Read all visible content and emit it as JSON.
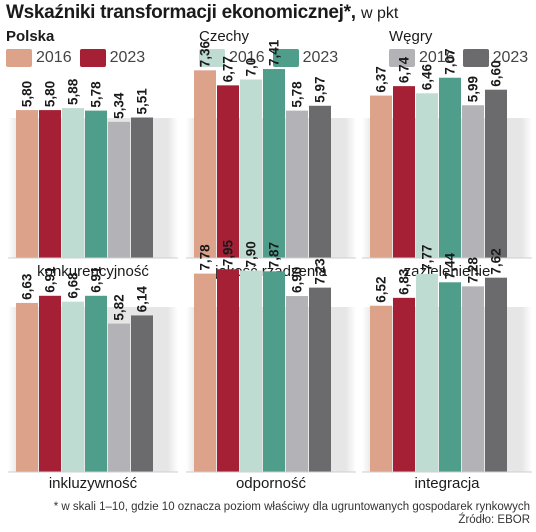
{
  "title": {
    "main": "Wskaźniki transformacji ekonomicznej*,",
    "unit": "w pkt"
  },
  "legend": [
    {
      "country": "Polska",
      "bold": true,
      "items": [
        {
          "label": "2016",
          "color": "#dca28a"
        },
        {
          "label": "2023",
          "color": "#a51f35"
        }
      ]
    },
    {
      "country": "Czechy",
      "bold": false,
      "items": [
        {
          "label": "2016",
          "color": "#bfdcd3"
        },
        {
          "label": "2023",
          "color": "#4f9e8c"
        }
      ]
    },
    {
      "country": "Węgry",
      "bold": false,
      "items": [
        {
          "label": "2016",
          "color": "#b3b3b7"
        },
        {
          "label": "2023",
          "color": "#6b6b6e"
        }
      ]
    }
  ],
  "chart_data": {
    "type": "bar",
    "series": [
      {
        "name": "Polska 2016",
        "color": "#dca28a"
      },
      {
        "name": "Polska 2023",
        "color": "#a51f35"
      },
      {
        "name": "Czechy 2016",
        "color": "#bfdcd3"
      },
      {
        "name": "Czechy 2023",
        "color": "#4f9e8c"
      },
      {
        "name": "Węgry 2016",
        "color": "#b3b3b7"
      },
      {
        "name": "Węgry 2023",
        "color": "#6b6b6e"
      }
    ],
    "ylim": [
      0,
      10
    ],
    "panels": [
      {
        "title": "konkurencyjność",
        "values": [
          5.8,
          5.8,
          5.88,
          5.78,
          5.34,
          5.51
        ],
        "labels": [
          "5,80",
          "5,80",
          "5,88",
          "5,78",
          "5,34",
          "5,51"
        ]
      },
      {
        "title": "jakość rządzenia",
        "values": [
          7.36,
          6.77,
          7.0,
          7.41,
          5.78,
          5.97
        ],
        "labels": [
          "7,36",
          "6,77",
          "7,0",
          "7,41",
          "5,78",
          "5,97"
        ]
      },
      {
        "title": "zazielenienie",
        "values": [
          6.37,
          6.74,
          6.46,
          7.07,
          5.99,
          6.6
        ],
        "labels": [
          "6,37",
          "6,74",
          "6,46",
          "7,07",
          "5,99",
          "6,60"
        ]
      },
      {
        "title": "inkluzywność",
        "values": [
          6.63,
          6.91,
          6.68,
          6.91,
          5.82,
          6.14
        ],
        "labels": [
          "6,63",
          "6,91",
          "6,68",
          "6,91",
          "5,82",
          "6,14"
        ]
      },
      {
        "title": "odporność",
        "values": [
          7.78,
          7.95,
          7.9,
          7.87,
          6.9,
          7.23
        ],
        "labels": [
          "7,78",
          "7,95",
          "7,90",
          "7,87",
          "6,90",
          "7,23"
        ]
      },
      {
        "title": "integracja",
        "values": [
          6.52,
          6.83,
          7.77,
          7.44,
          7.28,
          7.62
        ],
        "labels": [
          "6,52",
          "6,83",
          "7,77",
          "7,44",
          "7,28",
          "7,62"
        ]
      }
    ]
  },
  "footnote": "* w skali 1–10, gdzie 10 oznacza poziom właściwy dla ugruntowanych gospodarek rynkowych",
  "source": "Źródło: EBOR"
}
